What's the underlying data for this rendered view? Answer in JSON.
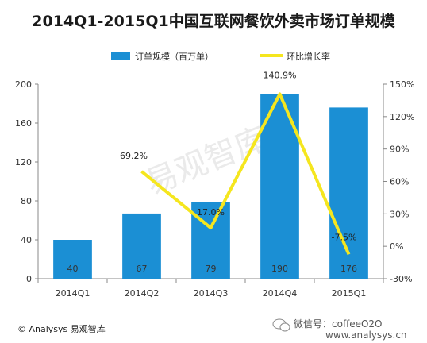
{
  "chart_data": {
    "type": "bar",
    "title": "2014Q1-2015Q1中国互联网餐饮外卖市场订单规模",
    "categories": [
      "2014Q1",
      "2014Q2",
      "2014Q3",
      "2014Q4",
      "2015Q1"
    ],
    "series": [
      {
        "name": "订单规模（百万单）",
        "type": "bar",
        "axis": "left",
        "color": "#1b8fd4",
        "values": [
          40,
          67,
          79,
          190,
          176
        ],
        "labels": [
          "40",
          "67",
          "79",
          "190",
          "176"
        ]
      },
      {
        "name": "环比增长率",
        "type": "line",
        "axis": "right",
        "color": "#f5e61e",
        "values": [
          null,
          69.2,
          17.0,
          140.9,
          -7.5
        ],
        "labels": [
          "",
          "69.2%",
          "17.0%",
          "140.9%",
          "-7.5%"
        ]
      }
    ],
    "y_left": {
      "ylim": [
        0,
        200
      ],
      "ticks": [
        "0",
        "40",
        "80",
        "120",
        "160",
        "200"
      ]
    },
    "y_right": {
      "ylim": [
        -30,
        150
      ],
      "ticks": [
        "-30%",
        "0%",
        "30%",
        "60%",
        "90%",
        "120%",
        "150%"
      ]
    },
    "legend_position": "top",
    "grid": false
  },
  "watermark": "易观智库",
  "footer": {
    "copyright": "© Analysys 易观智库",
    "wechat": "微信号：coffeeO2O",
    "site": "www.analysys.cn"
  }
}
